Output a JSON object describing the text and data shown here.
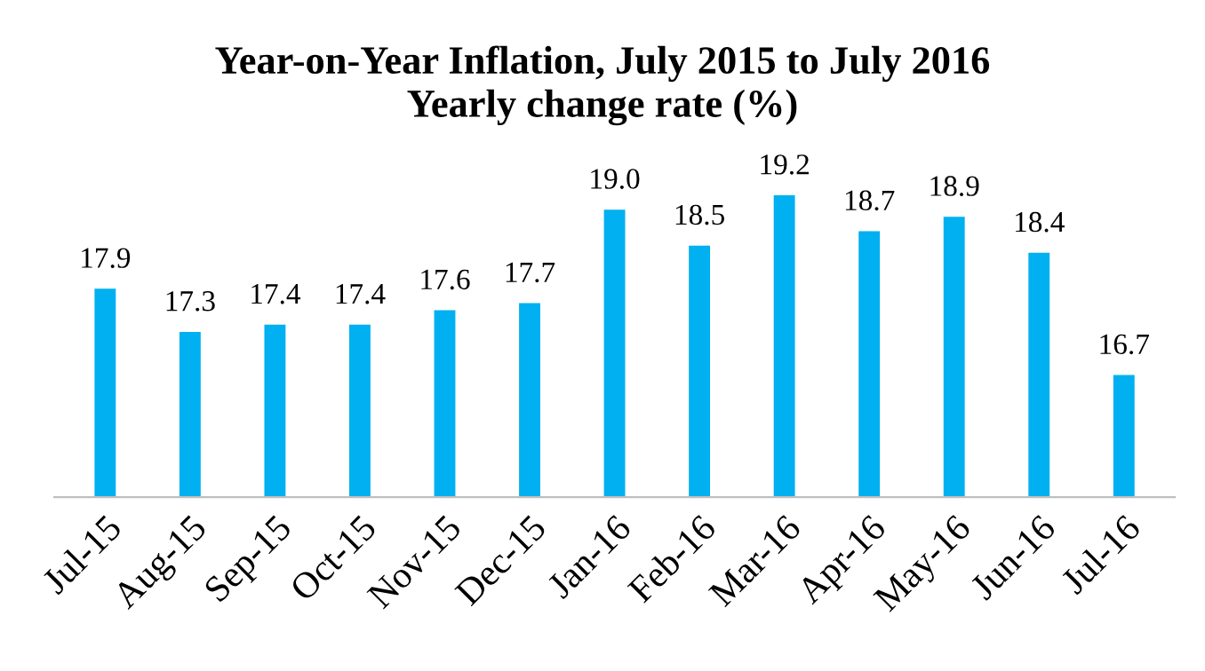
{
  "chart_data": {
    "type": "bar",
    "title": "Year-on-Year Inflation, July 2015 to July 2016",
    "subtitle": "Yearly change rate (%)",
    "categories": [
      "Jul-15",
      "Aug-15",
      "Sep-15",
      "Oct-15",
      "Nov-15",
      "Dec-15",
      "Jan-16",
      "Feb-16",
      "Mar-16",
      "Apr-16",
      "May-16",
      "Jun-16",
      "Jul-16"
    ],
    "values": [
      17.9,
      17.3,
      17.4,
      17.4,
      17.6,
      17.7,
      19.0,
      18.5,
      19.2,
      18.7,
      18.9,
      18.4,
      16.7
    ],
    "value_labels": [
      "17.9",
      "17.3",
      "17.4",
      "17.4",
      "17.6",
      "17.7",
      "19.0",
      "18.5",
      "19.2",
      "18.7",
      "18.9",
      "18.4",
      "16.7"
    ],
    "color": "#00b0f0",
    "ylim": [
      15,
      19.2
    ],
    "tick_labels": "x",
    "grid": false,
    "legend": false
  }
}
